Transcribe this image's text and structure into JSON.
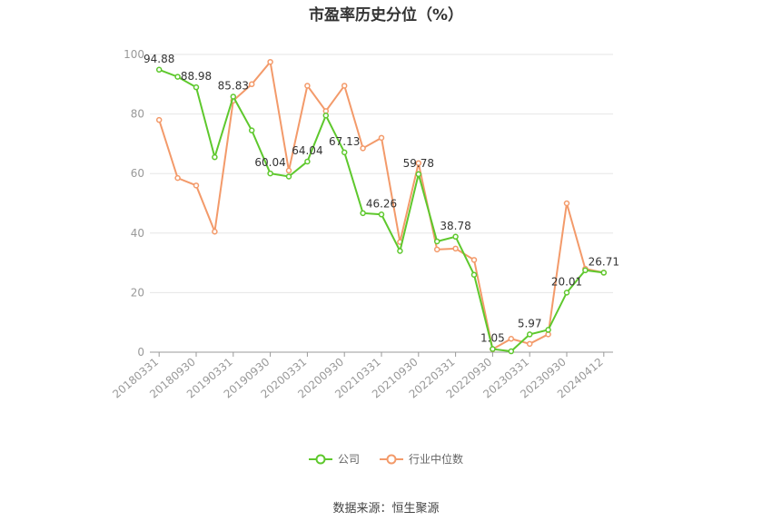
{
  "chart_data": {
    "type": "line",
    "title": "市盈率历史分位（%）",
    "ylim": [
      0,
      100
    ],
    "yticks": [
      0,
      20,
      40,
      60,
      80,
      100
    ],
    "x_tick_labels": [
      "20180331",
      "20180930",
      "20190331",
      "20190930",
      "20200331",
      "20200930",
      "20210331",
      "20210930",
      "20220331",
      "20220930",
      "20230331",
      "20230930",
      "20240412"
    ],
    "x": [
      "20180331",
      "20180630",
      "20180930",
      "20181231",
      "20190331",
      "20190630",
      "20190930",
      "20191231",
      "20200331",
      "20200630",
      "20200930",
      "20201231",
      "20210331",
      "20210630",
      "20210930",
      "20211231",
      "20220331",
      "20220630",
      "20220930",
      "20221231",
      "20230331",
      "20230630",
      "20230930",
      "20231231",
      "20240412"
    ],
    "series": [
      {
        "name": "公司",
        "color": "#5ec82d",
        "values": [
          94.88,
          92.5,
          88.98,
          65.5,
          85.83,
          74.5,
          60.04,
          59.0,
          64.04,
          79.5,
          67.13,
          46.7,
          46.26,
          34.0,
          59.78,
          37.2,
          38.78,
          26.0,
          1.05,
          0.3,
          5.97,
          7.5,
          20.01,
          27.5,
          26.71
        ],
        "labels": [
          "94.88",
          "",
          "88.98",
          "",
          "85.83",
          "",
          "60.04",
          "",
          "64.04",
          "",
          "67.13",
          "",
          "46.26",
          "",
          "59.78",
          "",
          "38.78",
          "",
          "1.05",
          "",
          "5.97",
          "",
          "20.01",
          "",
          "26.71"
        ]
      },
      {
        "name": "行业中位数",
        "color": "#f39a6a",
        "values": [
          78.0,
          58.5,
          56.0,
          40.5,
          84.5,
          90.0,
          97.5,
          61.0,
          89.5,
          81.0,
          89.5,
          68.5,
          72.0,
          37.0,
          63.5,
          34.5,
          34.8,
          31.0,
          1.0,
          4.5,
          2.8,
          6.0,
          50.0,
          28.0,
          26.71
        ]
      }
    ],
    "legend_position": "bottom",
    "grid": true
  },
  "footer": {
    "source": "数据来源：恒生聚源"
  }
}
